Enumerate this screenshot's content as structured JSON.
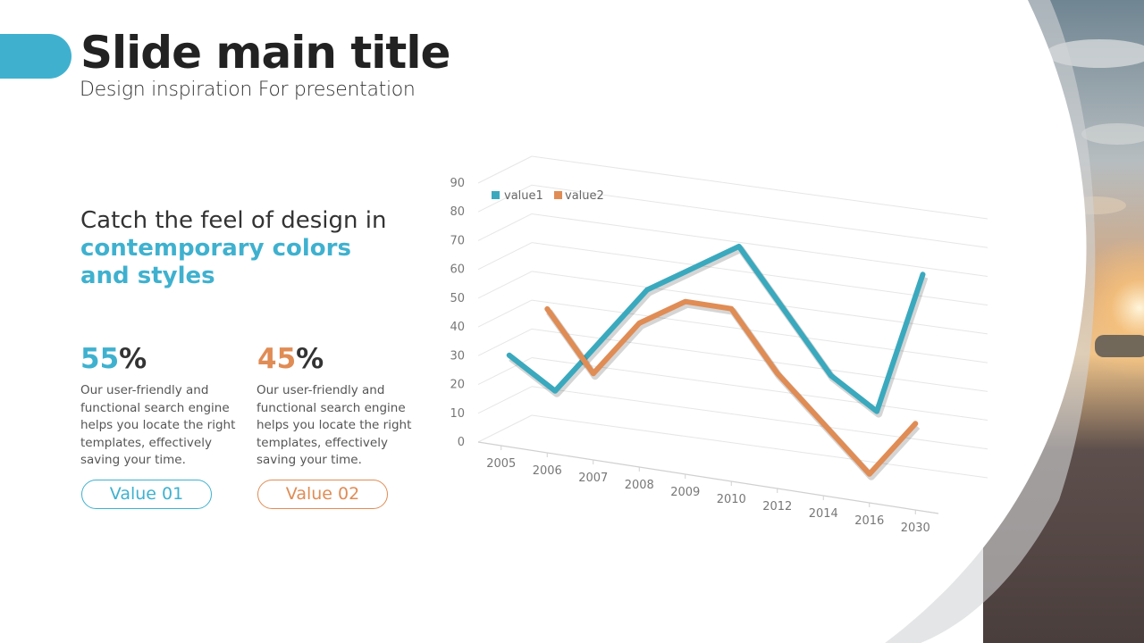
{
  "slide": {
    "title": "Slide main title",
    "subtitle": "Design inspiration For presentation",
    "headline_plain": "Catch the feel of design in",
    "headline_highlight": "contemporary colors and styles",
    "accent_color": "#3fb1cf",
    "secondary_color": "#e08c55"
  },
  "stats": [
    {
      "number": "55",
      "unit": "%",
      "color": "#3fb1cf",
      "description": "Our user-friendly and functional search engine helps you locate the right templates, effectively saving your time.",
      "button_label": "Value 01"
    },
    {
      "number": "45",
      "unit": "%",
      "color": "#e08c55",
      "description": "Our user-friendly and functional search engine helps you locate the right templates, effectively saving your time.",
      "button_label": "Value 02"
    }
  ],
  "chart_data": {
    "type": "line",
    "style": "3d",
    "categories": [
      "2005",
      "2006",
      "2007",
      "2008",
      "2009",
      "2010",
      "2012",
      "2014",
      "2016",
      "2030"
    ],
    "series": [
      {
        "name": "value1",
        "color": "#3aa9be",
        "values": [
          30,
          20,
          40,
          60,
          70,
          80,
          60,
          40,
          30,
          80
        ]
      },
      {
        "name": "value2",
        "color": "#e08c55",
        "values": [
          null,
          50,
          30,
          50,
          60,
          60,
          40,
          25,
          10,
          30
        ]
      }
    ],
    "y_ticks": [
      "0",
      "10",
      "20",
      "30",
      "40",
      "50",
      "60",
      "70",
      "80",
      "90"
    ],
    "ylim": [
      0,
      90
    ],
    "grid": true,
    "legend_position": "top-left"
  }
}
